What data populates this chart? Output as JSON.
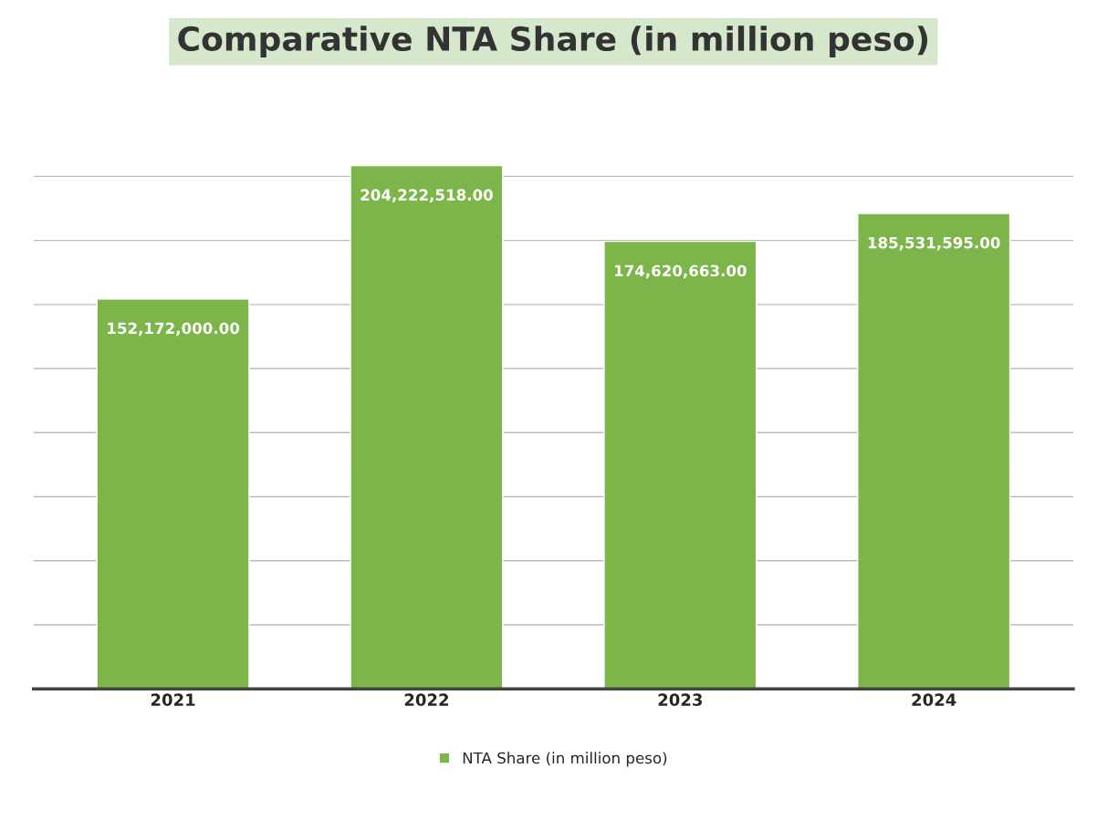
{
  "chart_data": {
    "type": "bar",
    "title": "Comparative NTA Share (in million peso)",
    "categories": [
      "2021",
      "2022",
      "2023",
      "2024"
    ],
    "series": [
      {
        "name": "NTA Share (in million peso)",
        "color": "#7cb64a",
        "values": [
          152172000.0,
          204222518.0,
          174620663.0,
          185531595.0
        ],
        "value_labels": [
          "152,172,000.00",
          "204,222,518.00",
          "174,620,663.00",
          "185,531,595.00"
        ]
      }
    ],
    "tick_labels": "x",
    "grid": "y",
    "legend": "bottom"
  }
}
